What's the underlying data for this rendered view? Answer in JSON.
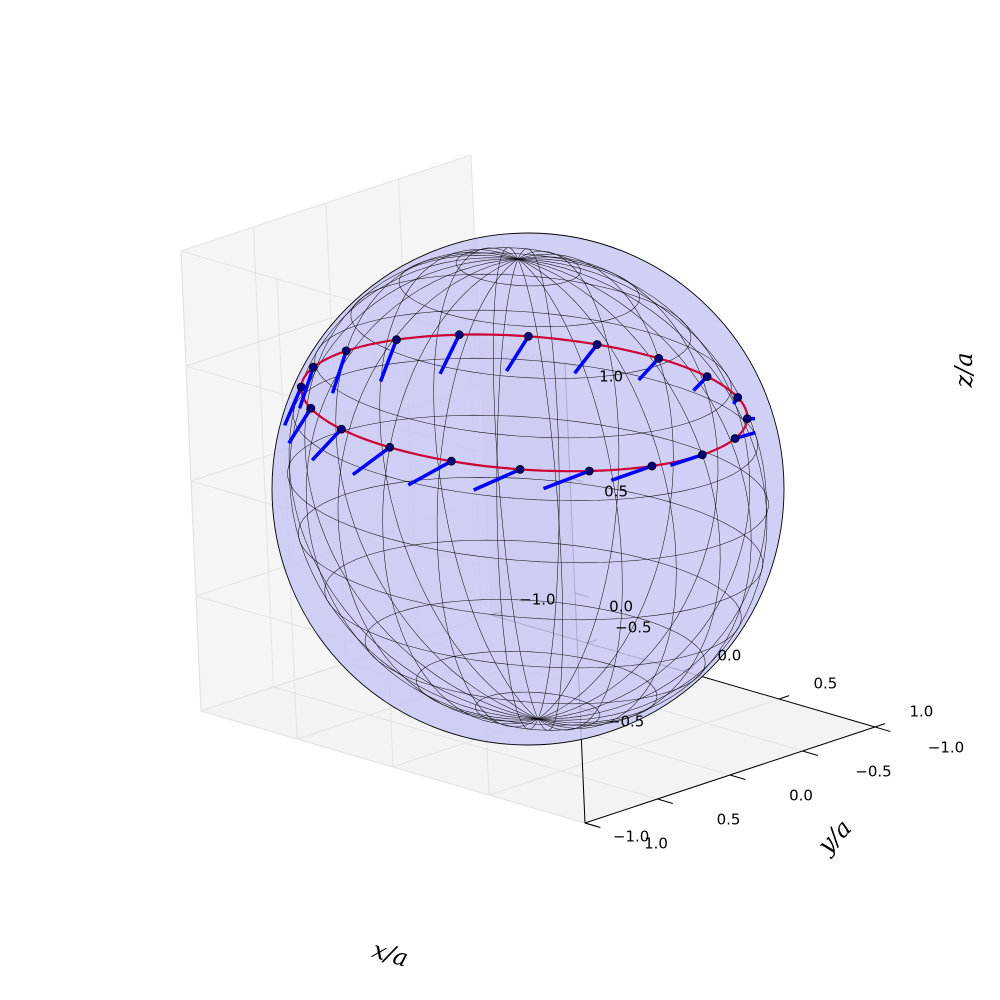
{
  "chart_data": {
    "type": "scatter",
    "projection": "3d",
    "title": "",
    "xlabel": "x/a",
    "ylabel": "y/a",
    "zlabel": "z/a",
    "xlim": [
      -1,
      1
    ],
    "ylim": [
      -1,
      1
    ],
    "zlim": [
      -1,
      1
    ],
    "xticks": [
      "−1.0",
      "−0.5",
      "0.0",
      "0.5",
      "1.0"
    ],
    "yticks": [
      "−1.0",
      "−0.5",
      "0.0",
      "0.5",
      "1.0"
    ],
    "zticks": [
      "−1.0",
      "−0.5",
      "0.0",
      "0.5",
      "1.0"
    ],
    "grid": true,
    "sphere": {
      "radius": 1,
      "face_color": "#c8c8f5",
      "edge_color": "#000000"
    },
    "ring": {
      "polar_angle_deg": 68,
      "color": "#cc0033"
    },
    "points": {
      "count": 20,
      "polar_angle_deg": 68,
      "marker_color": "#000080",
      "vector_color": "#0000ff",
      "vector_length": 0.22,
      "vector_tilt_deg": [
        0,
        180
      ]
    }
  }
}
